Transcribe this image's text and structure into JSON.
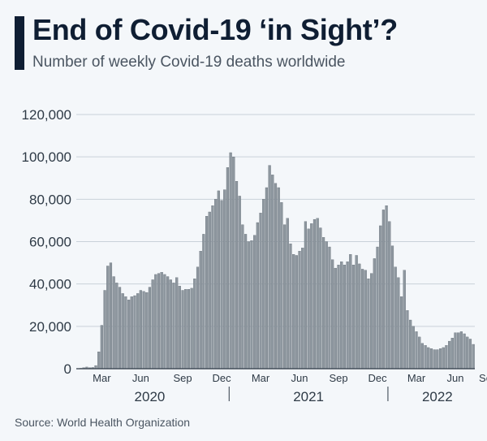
{
  "header": {
    "title": "End of Covid-19 ‘in Sight’?",
    "subtitle": "Number of weekly Covid-19 deaths worldwide"
  },
  "footer": {
    "source": "Source: World Health Organization"
  },
  "colors": {
    "bar_fill": "#8e979f",
    "bar_stroke": "#56606a",
    "grid": "#c9d1d9",
    "title": "#0f1e33"
  },
  "chart_data": {
    "type": "bar",
    "title": "End of Covid-19 ‘in Sight’?",
    "subtitle": "Number of weekly Covid-19 deaths worldwide",
    "ylim": [
      0,
      120000
    ],
    "yticks": [
      0,
      20000,
      40000,
      60000,
      80000,
      100000,
      120000
    ],
    "ytick_labels": [
      "0",
      "20,000",
      "40,000",
      "60,000",
      "80,000",
      "100,000",
      "120,000"
    ],
    "grid": true,
    "x_month_labels": [
      {
        "label": "Mar",
        "week_index": 8
      },
      {
        "label": "Jun",
        "week_index": 21
      },
      {
        "label": "Sep",
        "week_index": 35
      },
      {
        "label": "Dec",
        "week_index": 48
      },
      {
        "label": "Mar",
        "week_index": 61
      },
      {
        "label": "Jun",
        "week_index": 74
      },
      {
        "label": "Sep",
        "week_index": 87
      },
      {
        "label": "Dec",
        "week_index": 100
      },
      {
        "label": "Mar",
        "week_index": 113
      },
      {
        "label": "Jun",
        "week_index": 126
      },
      {
        "label": "Sep",
        "week_index": 137
      }
    ],
    "x_year_labels": [
      {
        "label": "2020",
        "week_index": 24
      },
      {
        "label": "2021",
        "week_index": 77
      },
      {
        "label": "2022",
        "week_index": 120
      }
    ],
    "year_separators": [
      51,
      104
    ],
    "values": [
      0,
      200,
      500,
      800,
      500,
      600,
      1500,
      8000,
      20500,
      37000,
      48500,
      50000,
      43500,
      40500,
      38500,
      35500,
      34000,
      32500,
      34000,
      34500,
      35500,
      37000,
      36500,
      36000,
      38500,
      42000,
      44500,
      45000,
      45500,
      44500,
      43500,
      42000,
      40500,
      43000,
      39000,
      37000,
      37500,
      37500,
      38000,
      42500,
      48000,
      55500,
      63500,
      72000,
      74000,
      77000,
      80000,
      84000,
      79500,
      84500,
      95000,
      102000,
      100000,
      88500,
      81500,
      68000,
      63500,
      60000,
      60500,
      63000,
      69000,
      73500,
      80000,
      85500,
      96000,
      91500,
      87500,
      85500,
      78500,
      68000,
      71000,
      59000,
      54000,
      53500,
      55500,
      57000,
      69500,
      66000,
      68500,
      70500,
      71000,
      66500,
      62000,
      60000,
      57500,
      51500,
      47500,
      49000,
      50500,
      49000,
      50500,
      54000,
      49000,
      53500,
      49500,
      47000,
      46500,
      42500,
      45000,
      52000,
      57500,
      67500,
      75000,
      77000,
      69500,
      58000,
      48000,
      43000,
      34000,
      46500,
      27500,
      23000,
      20000,
      17500,
      15000,
      12000,
      11000,
      10000,
      9500,
      9000,
      9000,
      9500,
      10000,
      11000,
      13000,
      14500,
      17000,
      17000,
      17500,
      16500,
      15000,
      14000,
      11500
    ]
  }
}
